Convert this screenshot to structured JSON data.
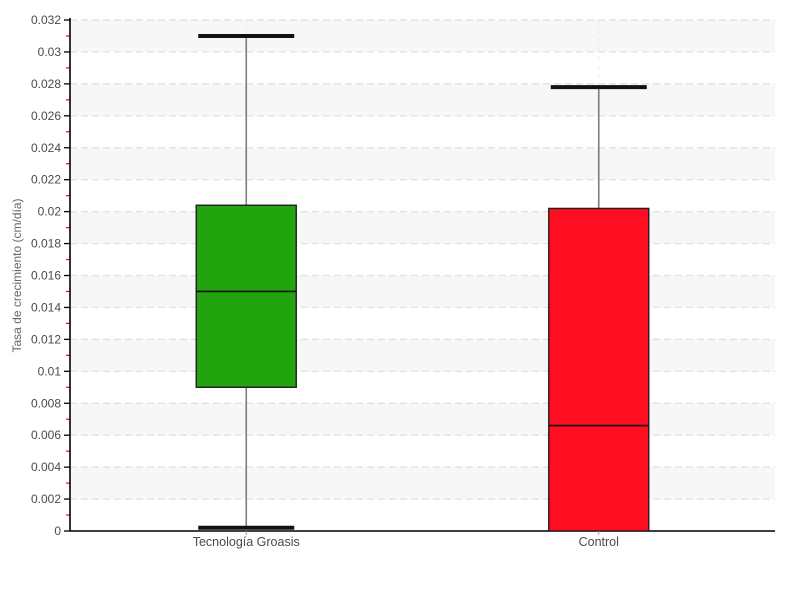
{
  "chart_data": {
    "type": "boxplot",
    "title": "",
    "xlabel": "",
    "ylabel": "Tasa de crecimiento (cm/día)",
    "ylim": [
      0,
      0.032
    ],
    "ytick_step": 0.002,
    "minor_tick_step": 0.001,
    "grid": "horizontal dashed gridlines with alternating shaded bands",
    "legend_position": "none",
    "ytick_labels": [
      "0",
      "0.002",
      "0.004",
      "0.006",
      "0.008",
      "0.01",
      "0.012",
      "0.014",
      "0.016",
      "0.018",
      "0.02",
      "0.022",
      "0.024",
      "0.026",
      "0.028",
      "0.03",
      "0.032"
    ],
    "categories": [
      "Tecnología Groasis",
      "Control"
    ],
    "series": [
      {
        "name": "Tecnología Groasis",
        "min": 0.0002,
        "q1": 0.009,
        "median": 0.015,
        "q3": 0.0204,
        "max": 0.031,
        "fill": "#22a40e",
        "lower_whisker": true
      },
      {
        "name": "Control",
        "min": 0,
        "q1": 0,
        "median": 0.0066,
        "q3": 0.0202,
        "max": 0.0278,
        "fill": "#ff0d21",
        "lower_whisker": false
      }
    ],
    "colors": {
      "box_green": "#22a40e",
      "box_red": "#ff0d21",
      "box_border": "#1f1f1f",
      "median_line": "#111111",
      "whisker_line": "#7d7d7d",
      "whisker_cap": "#111111",
      "axis_line": "#000000",
      "major_tick": "#000000",
      "minor_tick": "#ff0000",
      "tick_label": "#4a4a4a",
      "axis_title": "#666666",
      "gridline": "#e3e3e3",
      "band": "#f7f7f7",
      "category_gridline": "#ececec",
      "category_tick": "#999999",
      "background": "#ffffff"
    }
  }
}
